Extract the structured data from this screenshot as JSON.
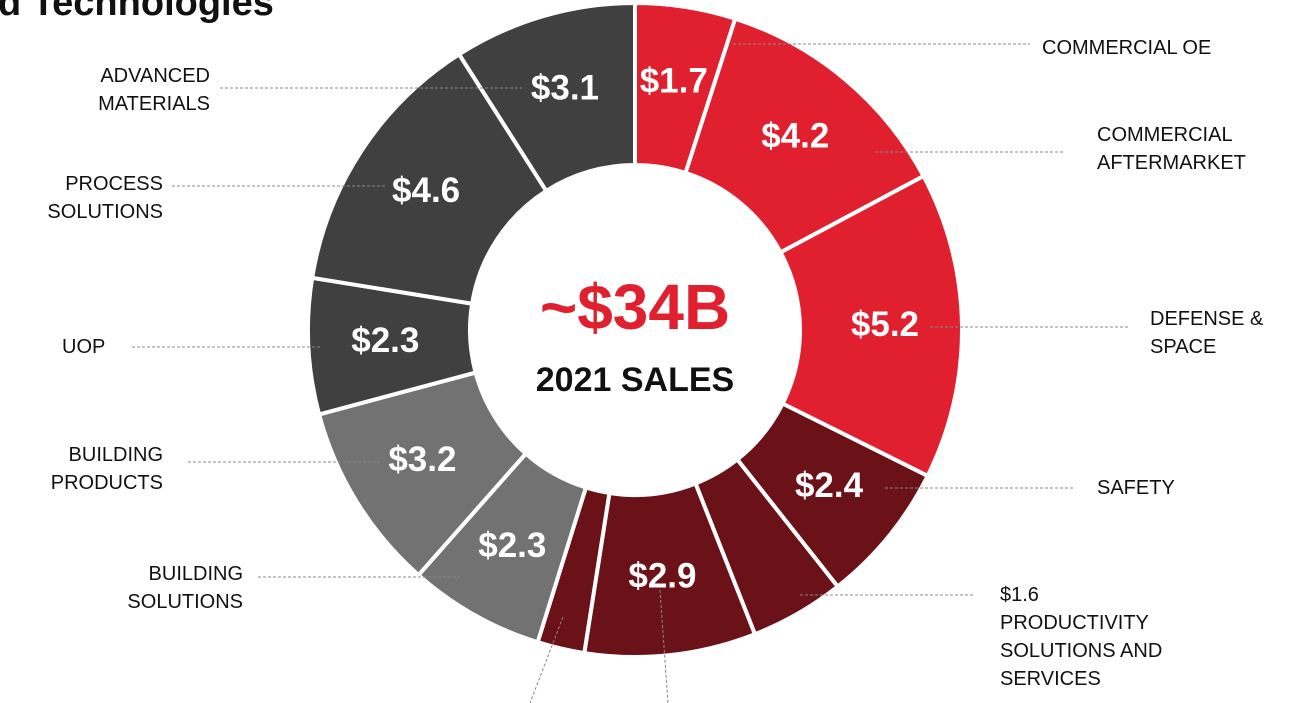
{
  "chart_data": {
    "type": "donut",
    "title": "d Technologies",
    "center_text": "~$34B",
    "center_subtext": "2021 SALES",
    "categories": [
      "COMMERCIAL OE",
      "COMMERCIAL\nAFTERMARKET",
      "DEFENSE &\nSPACE",
      "SAFETY",
      "PRODUCTIVITY\nSOLUTIONS AND\nSERVICES",
      null,
      null,
      "BUILDING\nSOLUTIONS",
      "BUILDING\nPRODUCTS",
      "UOP",
      "PROCESS\nSOLUTIONS",
      "ADVANCED\nMATERIALS"
    ],
    "values": [
      1.7,
      4.2,
      5.2,
      2.4,
      1.6,
      2.9,
      0.8,
      2.3,
      3.2,
      2.3,
      4.6,
      3.1
    ],
    "value_labels": [
      "$1.7",
      "$4.2",
      "$5.2",
      "$2.4",
      "$1.6",
      "$2.9",
      null,
      "$2.3",
      "$3.2",
      "$2.3",
      "$4.6",
      "$3.1"
    ],
    "colors": [
      "#e0202f",
      "#e0202f",
      "#e0202f",
      "#6b1118",
      "#6b1118",
      "#6b1118",
      "#6b1118",
      "#727272",
      "#727272",
      "#404040",
      "#404040",
      "#404040"
    ]
  }
}
